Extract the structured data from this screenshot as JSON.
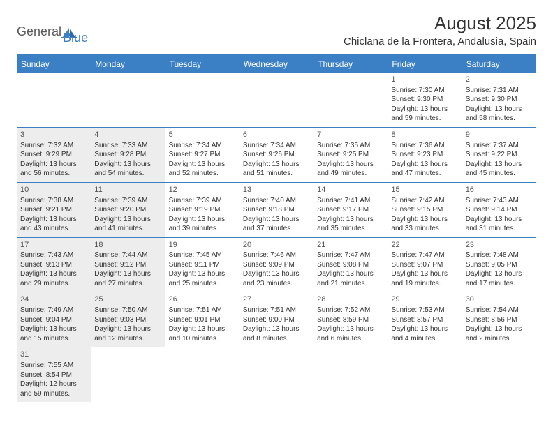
{
  "logo": {
    "general": "General",
    "blue": "Blue"
  },
  "title": "August 2025",
  "location": "Chiclana de la Frontera, Andalusia, Spain",
  "weekdays": [
    "Sunday",
    "Monday",
    "Tuesday",
    "Wednesday",
    "Thursday",
    "Friday",
    "Saturday"
  ],
  "colors": {
    "accent": "#3b7fc4",
    "shaded_bg": "#ededed",
    "text": "#333333",
    "logo_gray": "#5a5a5a"
  },
  "weeks": [
    [
      {
        "empty": true
      },
      {
        "empty": true
      },
      {
        "empty": true
      },
      {
        "empty": true
      },
      {
        "empty": true
      },
      {
        "num": "1",
        "shaded": false,
        "sunrise": "Sunrise: 7:30 AM",
        "sunset": "Sunset: 9:30 PM",
        "d1": "Daylight: 13 hours",
        "d2": "and 59 minutes."
      },
      {
        "num": "2",
        "shaded": false,
        "sunrise": "Sunrise: 7:31 AM",
        "sunset": "Sunset: 9:30 PM",
        "d1": "Daylight: 13 hours",
        "d2": "and 58 minutes."
      }
    ],
    [
      {
        "num": "3",
        "shaded": true,
        "sunrise": "Sunrise: 7:32 AM",
        "sunset": "Sunset: 9:29 PM",
        "d1": "Daylight: 13 hours",
        "d2": "and 56 minutes."
      },
      {
        "num": "4",
        "shaded": true,
        "sunrise": "Sunrise: 7:33 AM",
        "sunset": "Sunset: 9:28 PM",
        "d1": "Daylight: 13 hours",
        "d2": "and 54 minutes."
      },
      {
        "num": "5",
        "shaded": false,
        "sunrise": "Sunrise: 7:34 AM",
        "sunset": "Sunset: 9:27 PM",
        "d1": "Daylight: 13 hours",
        "d2": "and 52 minutes."
      },
      {
        "num": "6",
        "shaded": false,
        "sunrise": "Sunrise: 7:34 AM",
        "sunset": "Sunset: 9:26 PM",
        "d1": "Daylight: 13 hours",
        "d2": "and 51 minutes."
      },
      {
        "num": "7",
        "shaded": false,
        "sunrise": "Sunrise: 7:35 AM",
        "sunset": "Sunset: 9:25 PM",
        "d1": "Daylight: 13 hours",
        "d2": "and 49 minutes."
      },
      {
        "num": "8",
        "shaded": false,
        "sunrise": "Sunrise: 7:36 AM",
        "sunset": "Sunset: 9:23 PM",
        "d1": "Daylight: 13 hours",
        "d2": "and 47 minutes."
      },
      {
        "num": "9",
        "shaded": false,
        "sunrise": "Sunrise: 7:37 AM",
        "sunset": "Sunset: 9:22 PM",
        "d1": "Daylight: 13 hours",
        "d2": "and 45 minutes."
      }
    ],
    [
      {
        "num": "10",
        "shaded": true,
        "sunrise": "Sunrise: 7:38 AM",
        "sunset": "Sunset: 9:21 PM",
        "d1": "Daylight: 13 hours",
        "d2": "and 43 minutes."
      },
      {
        "num": "11",
        "shaded": true,
        "sunrise": "Sunrise: 7:39 AM",
        "sunset": "Sunset: 9:20 PM",
        "d1": "Daylight: 13 hours",
        "d2": "and 41 minutes."
      },
      {
        "num": "12",
        "shaded": false,
        "sunrise": "Sunrise: 7:39 AM",
        "sunset": "Sunset: 9:19 PM",
        "d1": "Daylight: 13 hours",
        "d2": "and 39 minutes."
      },
      {
        "num": "13",
        "shaded": false,
        "sunrise": "Sunrise: 7:40 AM",
        "sunset": "Sunset: 9:18 PM",
        "d1": "Daylight: 13 hours",
        "d2": "and 37 minutes."
      },
      {
        "num": "14",
        "shaded": false,
        "sunrise": "Sunrise: 7:41 AM",
        "sunset": "Sunset: 9:17 PM",
        "d1": "Daylight: 13 hours",
        "d2": "and 35 minutes."
      },
      {
        "num": "15",
        "shaded": false,
        "sunrise": "Sunrise: 7:42 AM",
        "sunset": "Sunset: 9:15 PM",
        "d1": "Daylight: 13 hours",
        "d2": "and 33 minutes."
      },
      {
        "num": "16",
        "shaded": false,
        "sunrise": "Sunrise: 7:43 AM",
        "sunset": "Sunset: 9:14 PM",
        "d1": "Daylight: 13 hours",
        "d2": "and 31 minutes."
      }
    ],
    [
      {
        "num": "17",
        "shaded": true,
        "sunrise": "Sunrise: 7:43 AM",
        "sunset": "Sunset: 9:13 PM",
        "d1": "Daylight: 13 hours",
        "d2": "and 29 minutes."
      },
      {
        "num": "18",
        "shaded": true,
        "sunrise": "Sunrise: 7:44 AM",
        "sunset": "Sunset: 9:12 PM",
        "d1": "Daylight: 13 hours",
        "d2": "and 27 minutes."
      },
      {
        "num": "19",
        "shaded": false,
        "sunrise": "Sunrise: 7:45 AM",
        "sunset": "Sunset: 9:11 PM",
        "d1": "Daylight: 13 hours",
        "d2": "and 25 minutes."
      },
      {
        "num": "20",
        "shaded": false,
        "sunrise": "Sunrise: 7:46 AM",
        "sunset": "Sunset: 9:09 PM",
        "d1": "Daylight: 13 hours",
        "d2": "and 23 minutes."
      },
      {
        "num": "21",
        "shaded": false,
        "sunrise": "Sunrise: 7:47 AM",
        "sunset": "Sunset: 9:08 PM",
        "d1": "Daylight: 13 hours",
        "d2": "and 21 minutes."
      },
      {
        "num": "22",
        "shaded": false,
        "sunrise": "Sunrise: 7:47 AM",
        "sunset": "Sunset: 9:07 PM",
        "d1": "Daylight: 13 hours",
        "d2": "and 19 minutes."
      },
      {
        "num": "23",
        "shaded": false,
        "sunrise": "Sunrise: 7:48 AM",
        "sunset": "Sunset: 9:05 PM",
        "d1": "Daylight: 13 hours",
        "d2": "and 17 minutes."
      }
    ],
    [
      {
        "num": "24",
        "shaded": true,
        "sunrise": "Sunrise: 7:49 AM",
        "sunset": "Sunset: 9:04 PM",
        "d1": "Daylight: 13 hours",
        "d2": "and 15 minutes."
      },
      {
        "num": "25",
        "shaded": true,
        "sunrise": "Sunrise: 7:50 AM",
        "sunset": "Sunset: 9:03 PM",
        "d1": "Daylight: 13 hours",
        "d2": "and 12 minutes."
      },
      {
        "num": "26",
        "shaded": false,
        "sunrise": "Sunrise: 7:51 AM",
        "sunset": "Sunset: 9:01 PM",
        "d1": "Daylight: 13 hours",
        "d2": "and 10 minutes."
      },
      {
        "num": "27",
        "shaded": false,
        "sunrise": "Sunrise: 7:51 AM",
        "sunset": "Sunset: 9:00 PM",
        "d1": "Daylight: 13 hours",
        "d2": "and 8 minutes."
      },
      {
        "num": "28",
        "shaded": false,
        "sunrise": "Sunrise: 7:52 AM",
        "sunset": "Sunset: 8:59 PM",
        "d1": "Daylight: 13 hours",
        "d2": "and 6 minutes."
      },
      {
        "num": "29",
        "shaded": false,
        "sunrise": "Sunrise: 7:53 AM",
        "sunset": "Sunset: 8:57 PM",
        "d1": "Daylight: 13 hours",
        "d2": "and 4 minutes."
      },
      {
        "num": "30",
        "shaded": false,
        "sunrise": "Sunrise: 7:54 AM",
        "sunset": "Sunset: 8:56 PM",
        "d1": "Daylight: 13 hours",
        "d2": "and 2 minutes."
      }
    ],
    [
      {
        "num": "31",
        "shaded": true,
        "sunrise": "Sunrise: 7:55 AM",
        "sunset": "Sunset: 8:54 PM",
        "d1": "Daylight: 12 hours",
        "d2": "and 59 minutes."
      },
      {
        "empty": true
      },
      {
        "empty": true
      },
      {
        "empty": true
      },
      {
        "empty": true
      },
      {
        "empty": true
      },
      {
        "empty": true
      }
    ]
  ]
}
